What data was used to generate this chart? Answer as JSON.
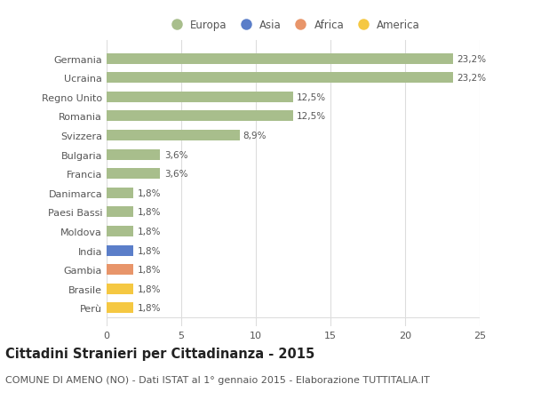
{
  "categories": [
    "Perù",
    "Brasile",
    "Gambia",
    "India",
    "Moldova",
    "Paesi Bassi",
    "Danimarca",
    "Francia",
    "Bulgaria",
    "Svizzera",
    "Romania",
    "Regno Unito",
    "Ucraina",
    "Germania"
  ],
  "values": [
    1.8,
    1.8,
    1.8,
    1.8,
    1.8,
    1.8,
    1.8,
    3.6,
    3.6,
    8.9,
    12.5,
    12.5,
    23.2,
    23.2
  ],
  "labels": [
    "1,8%",
    "1,8%",
    "1,8%",
    "1,8%",
    "1,8%",
    "1,8%",
    "1,8%",
    "3,6%",
    "3,6%",
    "8,9%",
    "12,5%",
    "12,5%",
    "23,2%",
    "23,2%"
  ],
  "colors": [
    "#f5c842",
    "#f5c842",
    "#e8956a",
    "#5b7ec9",
    "#a8be8c",
    "#a8be8c",
    "#a8be8c",
    "#a8be8c",
    "#a8be8c",
    "#a8be8c",
    "#a8be8c",
    "#a8be8c",
    "#a8be8c",
    "#a8be8c"
  ],
  "legend_labels": [
    "Europa",
    "Asia",
    "Africa",
    "America"
  ],
  "legend_colors": [
    "#a8be8c",
    "#5b7ec9",
    "#e8956a",
    "#f5c842"
  ],
  "title": "Cittadini Stranieri per Cittadinanza - 2015",
  "subtitle": "COMUNE DI AMENO (NO) - Dati ISTAT al 1° gennaio 2015 - Elaborazione TUTTITALIA.IT",
  "xlim": [
    0,
    25
  ],
  "xticks": [
    0,
    5,
    10,
    15,
    20,
    25
  ],
  "background_color": "#ffffff",
  "grid_color": "#dddddd",
  "bar_height": 0.55,
  "title_fontsize": 10.5,
  "subtitle_fontsize": 8,
  "label_fontsize": 7.5,
  "tick_fontsize": 8,
  "legend_fontsize": 8.5
}
